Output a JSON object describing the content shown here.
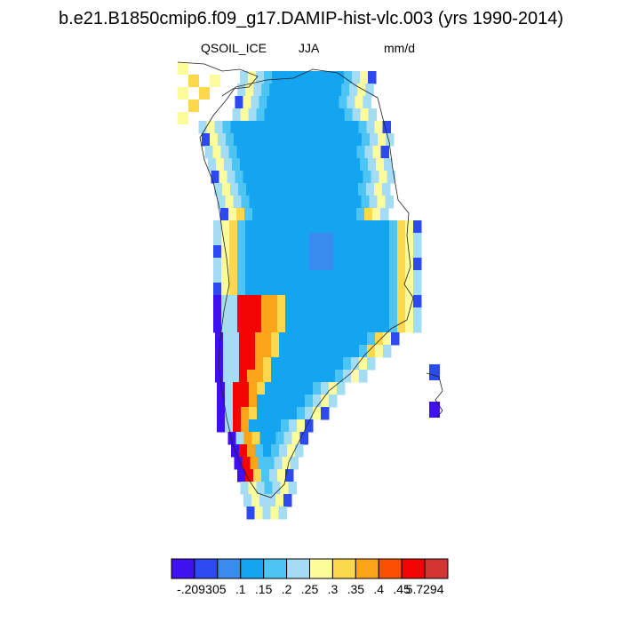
{
  "title": "b.e21.B1850cmip6.f09_g17.DAMIP-hist-vlc.003 (yrs 1990-2014)",
  "left_label": "QSOIL_ICE",
  "center_label": "JJA",
  "right_label": "mm/d",
  "colorbar": {
    "colors": [
      "#3f10f0",
      "#2c4af0",
      "#3a8af0",
      "#14a4f0",
      "#4cc4f4",
      "#a4dcf4",
      "#fcfc9c",
      "#fcd84c",
      "#fca418",
      "#fc5000",
      "#f00404",
      "#d43434"
    ],
    "labels": [
      "-.2093",
      ".05",
      ".1",
      ".15",
      ".2",
      ".25",
      ".3",
      ".35",
      ".4",
      ".45",
      "5.7294"
    ]
  },
  "map": {
    "region": "Greenland",
    "field": "QSOIL_ICE JJA mean",
    "units": "mm/d",
    "pattern": "interior ice sheet ~0.15-0.2 mm/d; margins 0.25-0.35; southwest coast up to 0.45-5.73; scattered negative cells along western and eastern coast"
  }
}
